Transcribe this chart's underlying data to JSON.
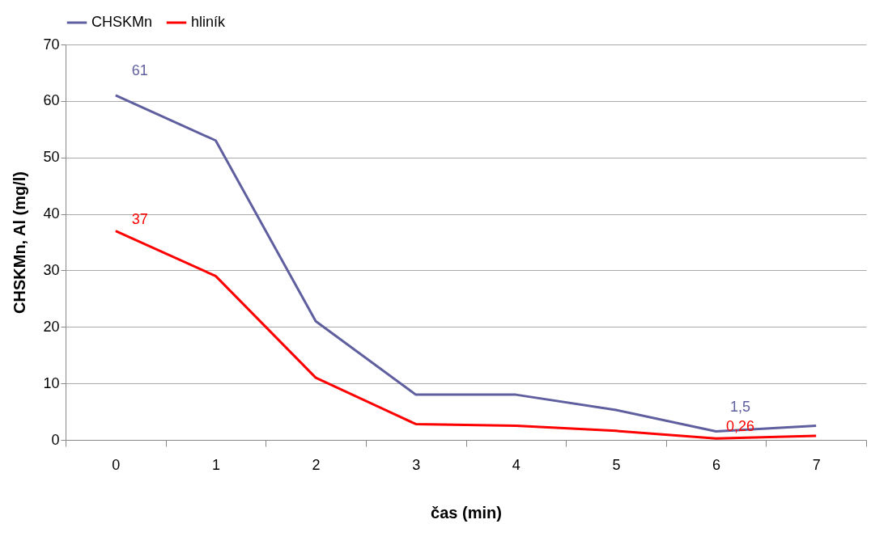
{
  "chart_data": {
    "type": "line",
    "xlabel": "čas (min)",
    "ylabel": "CHSKMn, Al (mg/l)",
    "categories": [
      "0",
      "1",
      "2",
      "3",
      "4",
      "5",
      "6",
      "7"
    ],
    "ylim": [
      0,
      70
    ],
    "yticks": [
      0,
      10,
      20,
      30,
      40,
      50,
      60,
      70
    ],
    "grid": "y",
    "legend": "top",
    "series": [
      {
        "name": "CHSKMn",
        "color": "#5f5f9f",
        "values": [
          61,
          53,
          21,
          8,
          8,
          5.3,
          1.5,
          2.5
        ],
        "value_labels": [
          "61",
          null,
          null,
          null,
          null,
          null,
          "1,5",
          null
        ]
      },
      {
        "name": "hliník",
        "color": "#ff0000",
        "values": [
          37,
          29,
          11,
          2.8,
          2.5,
          1.6,
          0.26,
          0.7
        ],
        "value_labels": [
          "37",
          null,
          null,
          null,
          null,
          null,
          "0,26",
          null
        ]
      }
    ]
  }
}
